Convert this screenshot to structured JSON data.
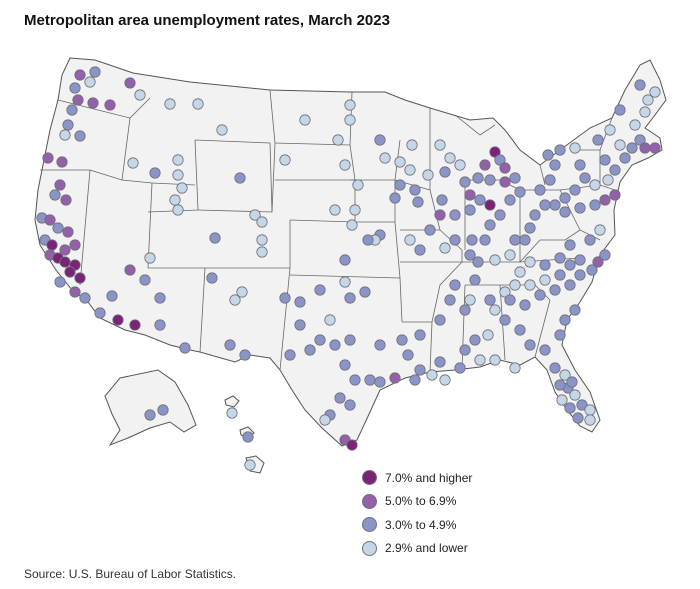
{
  "title": "Metropolitan area unemployment rates, March 2023",
  "source": "Source: U.S. Bureau of Labor Statistics.",
  "legend": [
    {
      "label": "7.0% and higher",
      "color": "#7a2379",
      "name": "legend-7-plus"
    },
    {
      "label": "5.0% to 6.9%",
      "color": "#9360a9",
      "name": "legend-5-to-6-9"
    },
    {
      "label": "3.0% to 4.9%",
      "color": "#8a94c7",
      "name": "legend-3-to-4-9"
    },
    {
      "label": "2.9% and lower",
      "color": "#c5d7e6",
      "name": "legend-2-9-lower"
    }
  ]
}
